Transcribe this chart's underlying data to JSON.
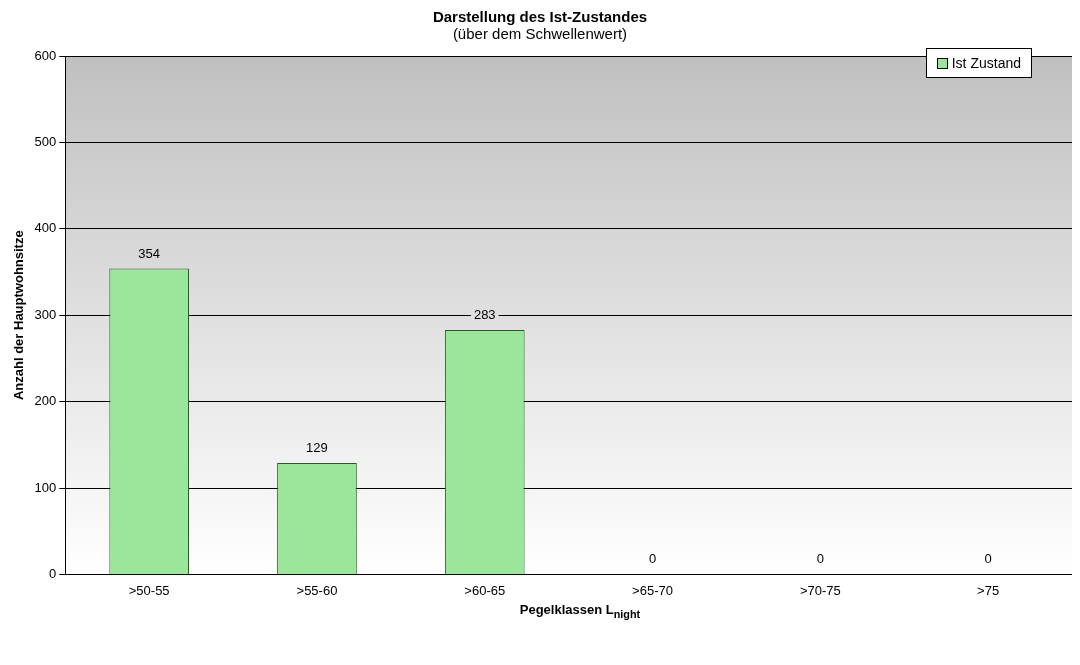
{
  "chart_data": {
    "type": "bar",
    "title": "Darstellung des Ist-Zustandes",
    "subtitle": "(über dem Schwellenwert)",
    "xlabel": "Pegelklassen L$_{night}$",
    "ylabel": "Anzahl der Hauptwohnsitze",
    "categories": [
      ">50-55",
      ">55-60",
      ">60-65",
      ">65-70",
      ">70-75",
      ">75"
    ],
    "series": [
      {
        "name": "Ist Zustand",
        "color": "#9be69b",
        "values": [
          354,
          129,
          283,
          0,
          0,
          0
        ]
      }
    ],
    "ylim": [
      0,
      600
    ],
    "yticks": [
      0,
      100,
      200,
      300,
      400,
      500,
      600
    ],
    "grid": "y",
    "legend": "top right",
    "data_labels": true
  }
}
